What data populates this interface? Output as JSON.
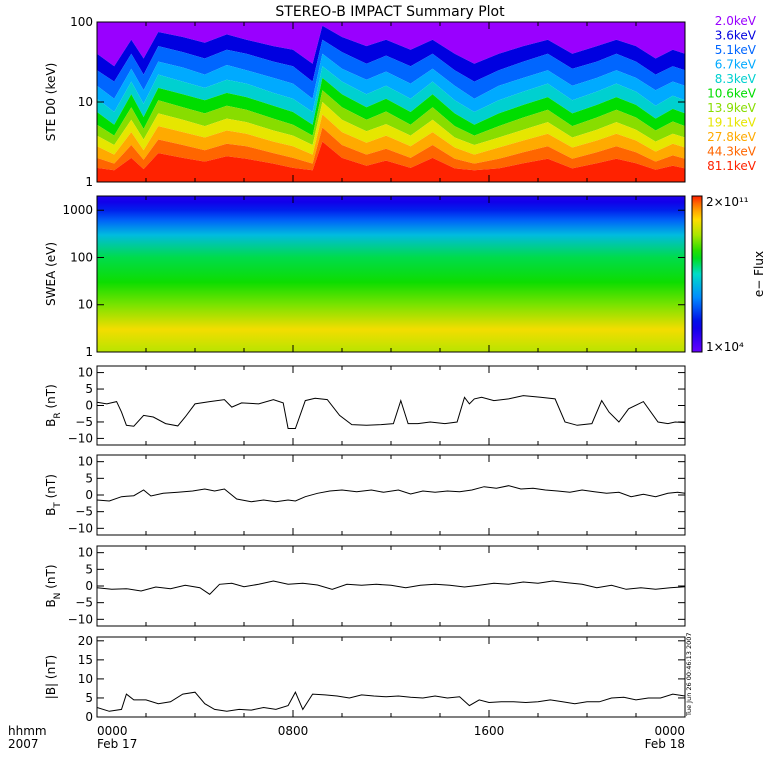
{
  "title": "STEREO-B IMPACT Summary Plot",
  "time_axis": {
    "row1_label": "hhmm",
    "row2_label": "2007",
    "ticks": [
      {
        "hour": 0,
        "time": "0000",
        "date": "Feb 17"
      },
      {
        "hour": 8,
        "time": "0800",
        "date": ""
      },
      {
        "hour": 16,
        "time": "1600",
        "date": ""
      },
      {
        "hour": 24,
        "time": "0000",
        "date": "Feb 18"
      }
    ]
  },
  "timestamp": "Tue Jun 26 00:46:13 2007",
  "colorbar": {
    "label": "e− Flux",
    "max_label": "2×10¹¹",
    "min_label": "1×10⁴",
    "range": [
      10000,
      200000000000
    ]
  },
  "chart_data": [
    {
      "type": "area",
      "id": "ste",
      "ylabel": "STE D0 (keV)",
      "yscale": "log",
      "ylim": [
        1,
        100
      ],
      "yticks": [
        {
          "v": 1,
          "l": "1"
        },
        {
          "v": 10,
          "l": "10"
        },
        {
          "v": 100,
          "l": "100"
        }
      ],
      "x_range_hours": [
        0,
        24
      ],
      "x_hours": [
        0,
        0.7,
        1.4,
        1.9,
        2.5,
        3.5,
        4.4,
        5.3,
        6.1,
        7.2,
        8.0,
        8.8,
        9.2,
        10.0,
        11.0,
        11.8,
        12.8,
        13.7,
        14.6,
        15.4,
        16.4,
        17.4,
        18.4,
        19.4,
        20.4,
        21.2,
        22.0,
        22.8,
        23.5,
        24
      ],
      "series": [
        {
          "name": "2.0keV",
          "color": "#9900ff",
          "values": [
            100,
            100,
            100,
            100,
            100,
            100,
            100,
            100,
            100,
            100,
            100,
            100,
            100,
            100,
            100,
            100,
            100,
            100,
            100,
            100,
            100,
            100,
            100,
            100,
            100,
            100,
            100,
            100,
            100,
            100
          ]
        },
        {
          "name": "3.6keV",
          "color": "#0000e0",
          "values": [
            40,
            28,
            60,
            35,
            75,
            65,
            55,
            70,
            60,
            50,
            45,
            30,
            90,
            65,
            50,
            60,
            45,
            60,
            40,
            30,
            40,
            50,
            60,
            40,
            50,
            60,
            50,
            35,
            45,
            40
          ]
        },
        {
          "name": "5.1keV",
          "color": "#0066ff",
          "values": [
            25,
            18,
            40,
            22,
            50,
            42,
            35,
            45,
            40,
            32,
            28,
            18,
            60,
            42,
            30,
            38,
            28,
            40,
            25,
            18,
            25,
            32,
            40,
            26,
            32,
            40,
            32,
            22,
            28,
            25
          ]
        },
        {
          "name": "6.7keV",
          "color": "#00aaff",
          "values": [
            16,
            11,
            26,
            14,
            32,
            27,
            22,
            29,
            25,
            20,
            17,
            11,
            40,
            26,
            19,
            24,
            17,
            26,
            16,
            11,
            16,
            20,
            25,
            16,
            20,
            25,
            20,
            14,
            18,
            16
          ]
        },
        {
          "name": "8.3keV",
          "color": "#00d0d0",
          "values": [
            11,
            7.5,
            18,
            9.5,
            22,
            18,
            15,
            19,
            17,
            13,
            11,
            7.5,
            28,
            18,
            12.5,
            16,
            11,
            18,
            10.5,
            7.5,
            10.5,
            13.5,
            17,
            10.5,
            13.5,
            17,
            13.5,
            9,
            12,
            10.5
          ]
        },
        {
          "name": "10.6keV",
          "color": "#00dd00",
          "values": [
            7.5,
            5.2,
            12.5,
            6.5,
            15,
            12.5,
            10.5,
            13,
            11.5,
            9,
            7.5,
            5.2,
            20,
            12.5,
            8.6,
            11,
            7.5,
            12.5,
            7.2,
            5.2,
            7.2,
            9.2,
            11.5,
            7.2,
            9.2,
            11.5,
            9.2,
            6.2,
            8.2,
            7.2
          ]
        },
        {
          "name": "13.9keV",
          "color": "#88dd00",
          "values": [
            5.2,
            3.8,
            8.6,
            4.6,
            10.5,
            8.6,
            7.2,
            9,
            8,
            6.2,
            5.2,
            3.8,
            14,
            8.6,
            6,
            7.6,
            5.2,
            8.6,
            5,
            3.8,
            5,
            6.4,
            8,
            5,
            6.4,
            8,
            6.4,
            4.4,
            5.7,
            5
          ]
        },
        {
          "name": "19.1keV",
          "color": "#e6e600",
          "values": [
            3.8,
            2.9,
            6,
            3.4,
            7.2,
            6,
            5,
            6.2,
            5.6,
            4.4,
            3.8,
            2.9,
            10,
            6,
            4.3,
            5.3,
            3.8,
            6,
            3.6,
            2.9,
            3.6,
            4.5,
            5.6,
            3.6,
            4.5,
            5.6,
            4.5,
            3.2,
            4,
            3.6
          ]
        },
        {
          "name": "27.8keV",
          "color": "#ffaa00",
          "values": [
            2.8,
            2.2,
            4.2,
            2.5,
            5,
            4.2,
            3.6,
            4.4,
            4,
            3.2,
            2.8,
            2.2,
            7,
            4.2,
            3.1,
            3.8,
            2.8,
            4.2,
            2.7,
            2.2,
            2.7,
            3.3,
            4,
            2.7,
            3.3,
            4,
            3.3,
            2.4,
            3,
            2.7
          ]
        },
        {
          "name": "44.3keV",
          "color": "#ff6600",
          "values": [
            2,
            1.7,
            2.9,
            1.9,
            3.4,
            2.9,
            2.5,
            3,
            2.8,
            2.3,
            2,
            1.7,
            4.8,
            2.9,
            2.2,
            2.6,
            2,
            2.9,
            1.95,
            1.7,
            1.95,
            2.35,
            2.8,
            1.95,
            2.35,
            2.8,
            2.35,
            1.8,
            2.15,
            1.95
          ]
        },
        {
          "name": "81.1keV",
          "color": "#ff2200",
          "values": [
            1.5,
            1.4,
            2,
            1.45,
            2.3,
            2,
            1.8,
            2.1,
            1.95,
            1.7,
            1.5,
            1.4,
            3.2,
            2,
            1.6,
            1.85,
            1.5,
            2,
            1.48,
            1.4,
            1.48,
            1.72,
            1.95,
            1.48,
            1.72,
            1.95,
            1.72,
            1.42,
            1.6,
            1.48
          ]
        }
      ]
    },
    {
      "type": "heatmap",
      "id": "swea",
      "ylabel": "SWEA (eV)",
      "yscale": "log",
      "ylim": [
        1,
        2000
      ],
      "yticks": [
        {
          "v": 1,
          "l": "1"
        },
        {
          "v": 10,
          "l": "10"
        },
        {
          "v": 100,
          "l": "100"
        },
        {
          "v": 1000,
          "l": "1000"
        }
      ],
      "x_range_hours": [
        0,
        24
      ],
      "energy_profile_ev": [
        1,
        3,
        10,
        30,
        100,
        300,
        600,
        1000,
        1500,
        2000
      ],
      "log_flux_profile": [
        9.6,
        10.1,
        9.2,
        8.6,
        8.2,
        7.2,
        6.2,
        5.6,
        5.1,
        4.9
      ]
    },
    {
      "type": "line",
      "id": "br",
      "ylabel": "B_R (nT)",
      "ylim": [
        -12,
        12
      ],
      "yticks": [
        {
          "v": -10,
          "l": "−10"
        },
        {
          "v": -5,
          "l": "−5"
        },
        {
          "v": 0,
          "l": "0"
        },
        {
          "v": 5,
          "l": "5"
        },
        {
          "v": 10,
          "l": "10"
        }
      ],
      "x_range_hours": [
        0,
        24
      ],
      "x_hours": [
        0,
        0.4,
        0.8,
        1.0,
        1.2,
        1.5,
        1.9,
        2.3,
        2.8,
        3.3,
        3.6,
        4.0,
        4.6,
        5.2,
        5.5,
        5.9,
        6.6,
        7.2,
        7.6,
        7.8,
        8.1,
        8.5,
        8.9,
        9.4,
        9.9,
        10.4,
        11.0,
        11.6,
        12.1,
        12.4,
        12.7,
        13.1,
        13.6,
        14.2,
        14.7,
        15.0,
        15.2,
        15.4,
        15.7,
        16.2,
        16.8,
        17.4,
        18.1,
        18.7,
        19.1,
        19.6,
        20.2,
        20.6,
        20.9,
        21.3,
        21.7,
        22.3,
        22.9,
        23.3,
        23.6,
        24
      ],
      "values": [
        1,
        0.5,
        1.2,
        -2,
        -6,
        -6.3,
        -3,
        -3.5,
        -5.5,
        -6.2,
        -3.5,
        0.5,
        1.2,
        1.8,
        -0.5,
        0.8,
        0.5,
        1.8,
        0.8,
        -7,
        -7,
        1.5,
        2.2,
        1.8,
        -3,
        -5.8,
        -6,
        -5.8,
        -5.5,
        1.5,
        -5.5,
        -5.5,
        -5,
        -5.5,
        -5,
        2.5,
        0.5,
        2,
        2.5,
        1.5,
        2,
        3,
        2.5,
        2,
        -5,
        -6,
        -5.5,
        1.5,
        -2,
        -5,
        -1,
        1.2,
        -5,
        -5.5,
        -5,
        -5.2
      ]
    },
    {
      "type": "line",
      "id": "bt",
      "ylabel": "B_T (nT)",
      "ylim": [
        -12,
        12
      ],
      "yticks": [
        {
          "v": -10,
          "l": "−10"
        },
        {
          "v": -5,
          "l": "−5"
        },
        {
          "v": 0,
          "l": "0"
        },
        {
          "v": 5,
          "l": "5"
        },
        {
          "v": 10,
          "l": "10"
        }
      ],
      "x_range_hours": [
        0,
        24
      ],
      "x_hours": [
        0,
        0.5,
        1.0,
        1.5,
        1.9,
        2.2,
        2.7,
        3.3,
        3.9,
        4.4,
        4.8,
        5.2,
        5.7,
        6.3,
        6.8,
        7.3,
        7.8,
        8.1,
        8.5,
        9.0,
        9.5,
        10.0,
        10.6,
        11.2,
        11.7,
        12.3,
        12.8,
        13.3,
        13.8,
        14.3,
        14.8,
        15.3,
        15.8,
        16.3,
        16.8,
        17.3,
        17.8,
        18.3,
        18.8,
        19.3,
        19.8,
        20.3,
        20.8,
        21.3,
        21.8,
        22.3,
        22.8,
        23.3,
        23.7,
        24
      ],
      "values": [
        -1.5,
        -1.8,
        -0.5,
        -0.2,
        1.5,
        -0.3,
        0.5,
        0.8,
        1.2,
        1.8,
        1.2,
        1.8,
        -1.2,
        -2,
        -1.5,
        -2,
        -1.5,
        -1.8,
        -0.5,
        0.5,
        1.2,
        1.5,
        1,
        1.5,
        0.8,
        1.5,
        0.3,
        1.2,
        0.8,
        1.2,
        1,
        1.5,
        2.5,
        2,
        2.8,
        1.8,
        2,
        1.5,
        1.2,
        0.8,
        1.5,
        1,
        0.5,
        0.8,
        -0.5,
        0.2,
        -0.5,
        0.5,
        0.8,
        0.5
      ]
    },
    {
      "type": "line",
      "id": "bn",
      "ylabel": "B_N (nT)",
      "ylim": [
        -12,
        12
      ],
      "yticks": [
        {
          "v": -10,
          "l": "−10"
        },
        {
          "v": -5,
          "l": "−5"
        },
        {
          "v": 0,
          "l": "0"
        },
        {
          "v": 5,
          "l": "5"
        },
        {
          "v": 10,
          "l": "10"
        }
      ],
      "x_range_hours": [
        0,
        24
      ],
      "x_hours": [
        0,
        0.6,
        1.2,
        1.8,
        2.4,
        3.0,
        3.6,
        4.2,
        4.6,
        5.0,
        5.5,
        6.0,
        6.6,
        7.2,
        7.8,
        8.4,
        9.0,
        9.6,
        10.2,
        10.8,
        11.4,
        12.0,
        12.6,
        13.2,
        13.8,
        14.4,
        15.0,
        15.6,
        16.2,
        16.8,
        17.4,
        18.0,
        18.6,
        19.2,
        19.8,
        20.4,
        21.0,
        21.6,
        22.2,
        22.8,
        23.4,
        24
      ],
      "values": [
        -0.5,
        -1,
        -0.8,
        -1.5,
        -0.3,
        -0.8,
        0.2,
        -0.5,
        -2.5,
        0.5,
        0.8,
        -0.2,
        0.5,
        1.5,
        0.5,
        0.8,
        0.3,
        -1,
        0.5,
        0.2,
        0.5,
        0.2,
        -0.5,
        0.2,
        0.5,
        0.2,
        -0.3,
        0.2,
        0.8,
        0.5,
        1.2,
        0.8,
        1.5,
        1,
        0.5,
        -0.5,
        0.2,
        -1,
        -0.5,
        -1,
        -0.5,
        -0.2
      ]
    },
    {
      "type": "line",
      "id": "bmag",
      "ylabel": "|B| (nT)",
      "ylim": [
        0,
        21
      ],
      "yticks": [
        {
          "v": 0,
          "l": "0"
        },
        {
          "v": 5,
          "l": "5"
        },
        {
          "v": 10,
          "l": "10"
        },
        {
          "v": 15,
          "l": "15"
        },
        {
          "v": 20,
          "l": "20"
        }
      ],
      "x_range_hours": [
        0,
        24
      ],
      "x_hours": [
        0,
        0.5,
        1.0,
        1.2,
        1.5,
        2.0,
        2.5,
        3.0,
        3.5,
        4.0,
        4.4,
        4.8,
        5.3,
        5.8,
        6.3,
        6.8,
        7.3,
        7.8,
        8.1,
        8.4,
        8.8,
        9.3,
        9.8,
        10.3,
        10.8,
        11.3,
        11.8,
        12.3,
        12.8,
        13.3,
        13.8,
        14.3,
        14.8,
        15.2,
        15.6,
        16.0,
        16.5,
        17.0,
        17.5,
        18.0,
        18.5,
        19.0,
        19.5,
        20.0,
        20.5,
        21.0,
        21.5,
        22.0,
        22.5,
        23.0,
        23.5,
        24
      ],
      "values": [
        2.5,
        1.5,
        2,
        6,
        4.5,
        4.5,
        3.5,
        4,
        6,
        6.5,
        3.5,
        2,
        1.5,
        2,
        1.8,
        2.5,
        2,
        3,
        6.5,
        2,
        6,
        5.8,
        5.5,
        5,
        5.8,
        5.5,
        5.3,
        5.5,
        5.2,
        5,
        5.5,
        5,
        5.3,
        3,
        4.5,
        3.8,
        4,
        4,
        3.8,
        4,
        4.5,
        4,
        3.5,
        4,
        4,
        5,
        5.2,
        4.5,
        5,
        5,
        6,
        5.5
      ]
    }
  ]
}
